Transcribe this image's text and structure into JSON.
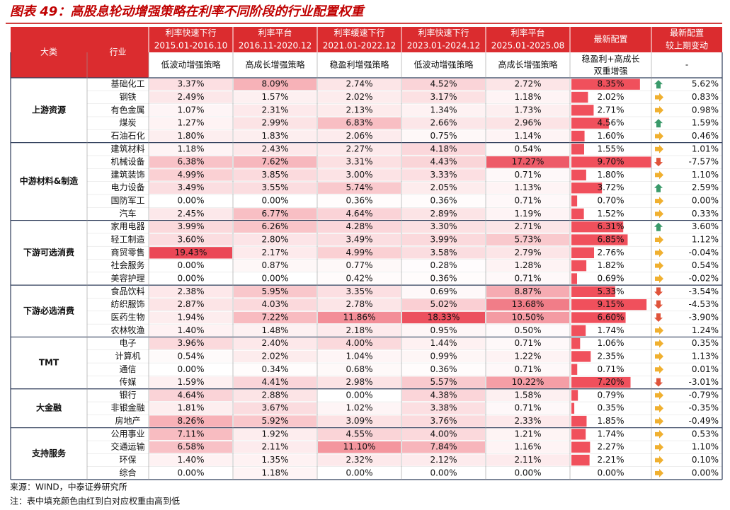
{
  "title": "图表 49：高股息轮动增强策略在利率不同阶段的行业配置权重",
  "header": {
    "group": "大类",
    "industry": "行业",
    "periods": [
      {
        "phase": "利率快速下行",
        "range": "2015.01-2016.10",
        "strategy": "低波动增强策略"
      },
      {
        "phase": "利率平台",
        "range": "2016.11-2020.12",
        "strategy": "高成长增强策略"
      },
      {
        "phase": "利率缓速下行",
        "range": "2021.01-2022.12",
        "strategy": "稳盈利增强策略"
      },
      {
        "phase": "利率快速下行",
        "range": "2023.01-2024.12",
        "strategy": "低波动增强策略"
      },
      {
        "phase": "利率平台",
        "range": "2025.01-2025.08",
        "strategy": "高成长增强策略"
      }
    ],
    "latest": "最新配置",
    "latest_strategy": [
      "稳盈利+高成长",
      "双重增强"
    ],
    "change": [
      "最新配置",
      "较上期变动"
    ],
    "change_sub": "-"
  },
  "groups": [
    {
      "name": "上游资源",
      "rows": [
        [
          "基础化工",
          "3.37%",
          "8.09%",
          "2.74%",
          "4.52%",
          "2.72%",
          "8.35%",
          "5.62%"
        ],
        [
          "钢铁",
          "2.49%",
          "1.57%",
          "2.02%",
          "3.17%",
          "1.18%",
          "2.02%",
          "0.83%"
        ],
        [
          "有色金属",
          "1.07%",
          "2.31%",
          "2.13%",
          "1.34%",
          "1.73%",
          "2.71%",
          "0.98%"
        ],
        [
          "煤炭",
          "1.27%",
          "2.99%",
          "6.83%",
          "2.66%",
          "2.96%",
          "4.56%",
          "1.59%"
        ],
        [
          "石油石化",
          "1.80%",
          "1.83%",
          "2.06%",
          "0.75%",
          "1.14%",
          "1.60%",
          "0.46%"
        ]
      ]
    },
    {
      "name": "中游材料&制造",
      "rows": [
        [
          "建筑材料",
          "1.18%",
          "2.43%",
          "2.27%",
          "4.18%",
          "0.54%",
          "1.55%",
          "1.01%"
        ],
        [
          "机械设备",
          "6.38%",
          "7.62%",
          "3.31%",
          "4.43%",
          "17.27%",
          "9.70%",
          "-7.57%"
        ],
        [
          "建筑装饰",
          "4.99%",
          "3.85%",
          "3.00%",
          "3.33%",
          "0.71%",
          "1.80%",
          "1.10%"
        ],
        [
          "电力设备",
          "3.49%",
          "3.55%",
          "5.74%",
          "2.05%",
          "1.13%",
          "3.72%",
          "2.59%"
        ],
        [
          "国防军工",
          "0.00%",
          "0.00%",
          "0.36%",
          "0.36%",
          "0.71%",
          "0.70%",
          "0.00%"
        ],
        [
          "汽车",
          "2.45%",
          "6.77%",
          "4.64%",
          "2.89%",
          "1.19%",
          "1.52%",
          "0.33%"
        ]
      ]
    },
    {
      "name": "下游可选消费",
      "rows": [
        [
          "家用电器",
          "3.99%",
          "6.26%",
          "4.28%",
          "3.30%",
          "2.71%",
          "6.31%",
          "3.60%"
        ],
        [
          "轻工制造",
          "3.60%",
          "2.80%",
          "3.49%",
          "3.99%",
          "5.73%",
          "6.85%",
          "1.12%"
        ],
        [
          "商贸零售",
          "19.43%",
          "2.17%",
          "4.99%",
          "3.58%",
          "2.79%",
          "2.76%",
          "-0.04%"
        ],
        [
          "社会服务",
          "0.00%",
          "0.87%",
          "0.77%",
          "0.28%",
          "1.28%",
          "1.82%",
          "0.54%"
        ],
        [
          "美容护理",
          "0.00%",
          "0.00%",
          "0.42%",
          "0.36%",
          "0.71%",
          "0.69%",
          "-0.02%"
        ]
      ]
    },
    {
      "name": "下游必选消费",
      "rows": [
        [
          "食品饮料",
          "2.38%",
          "5.95%",
          "3.35%",
          "0.69%",
          "8.87%",
          "5.33%",
          "-3.54%"
        ],
        [
          "纺织服饰",
          "2.87%",
          "4.03%",
          "2.78%",
          "5.02%",
          "13.68%",
          "9.15%",
          "-4.53%"
        ],
        [
          "医药生物",
          "1.94%",
          "7.22%",
          "11.86%",
          "18.33%",
          "10.50%",
          "6.60%",
          "-3.90%"
        ],
        [
          "农林牧渔",
          "1.40%",
          "1.48%",
          "2.18%",
          "0.95%",
          "0.50%",
          "1.74%",
          "1.24%"
        ]
      ]
    },
    {
      "name": "TMT",
      "rows": [
        [
          "电子",
          "3.96%",
          "2.40%",
          "4.00%",
          "1.44%",
          "0.71%",
          "1.06%",
          "0.35%"
        ],
        [
          "计算机",
          "0.54%",
          "2.02%",
          "1.04%",
          "0.99%",
          "1.22%",
          "2.35%",
          "1.13%"
        ],
        [
          "通信",
          "0.00%",
          "0.34%",
          "0.68%",
          "0.36%",
          "0.71%",
          "0.71%",
          "0.01%"
        ],
        [
          "传媒",
          "1.59%",
          "4.41%",
          "2.98%",
          "5.57%",
          "10.22%",
          "7.20%",
          "-3.01%"
        ]
      ]
    },
    {
      "name": "大金融",
      "rows": [
        [
          "银行",
          "4.64%",
          "2.88%",
          "0.00%",
          "4.38%",
          "1.58%",
          "0.79%",
          "-0.79%"
        ],
        [
          "非银金融",
          "1.81%",
          "3.67%",
          "1.02%",
          "3.38%",
          "0.71%",
          "0.35%",
          "-0.35%"
        ],
        [
          "房地产",
          "8.26%",
          "5.92%",
          "3.09%",
          "3.76%",
          "2.33%",
          "1.85%",
          "-0.49%"
        ]
      ]
    },
    {
      "name": "支持服务",
      "rows": [
        [
          "公用事业",
          "7.11%",
          "1.92%",
          "4.55%",
          "4.00%",
          "1.21%",
          "1.74%",
          "0.53%"
        ],
        [
          "交通运输",
          "6.58%",
          "2.11%",
          "11.10%",
          "7.84%",
          "1.16%",
          "2.27%",
          "1.10%"
        ],
        [
          "环保",
          "1.40%",
          "1.35%",
          "2.32%",
          "2.12%",
          "2.11%",
          "2.21%",
          "0.10%"
        ],
        [
          "综合",
          "0.00%",
          "1.18%",
          "0.00%",
          "0.00%",
          "0.00%",
          "0.00%",
          "0.00%"
        ]
      ]
    }
  ],
  "source": "来源：WIND，中泰证券研究所",
  "note": "注：表中填充颜色由红到白对应权重由高到低"
}
